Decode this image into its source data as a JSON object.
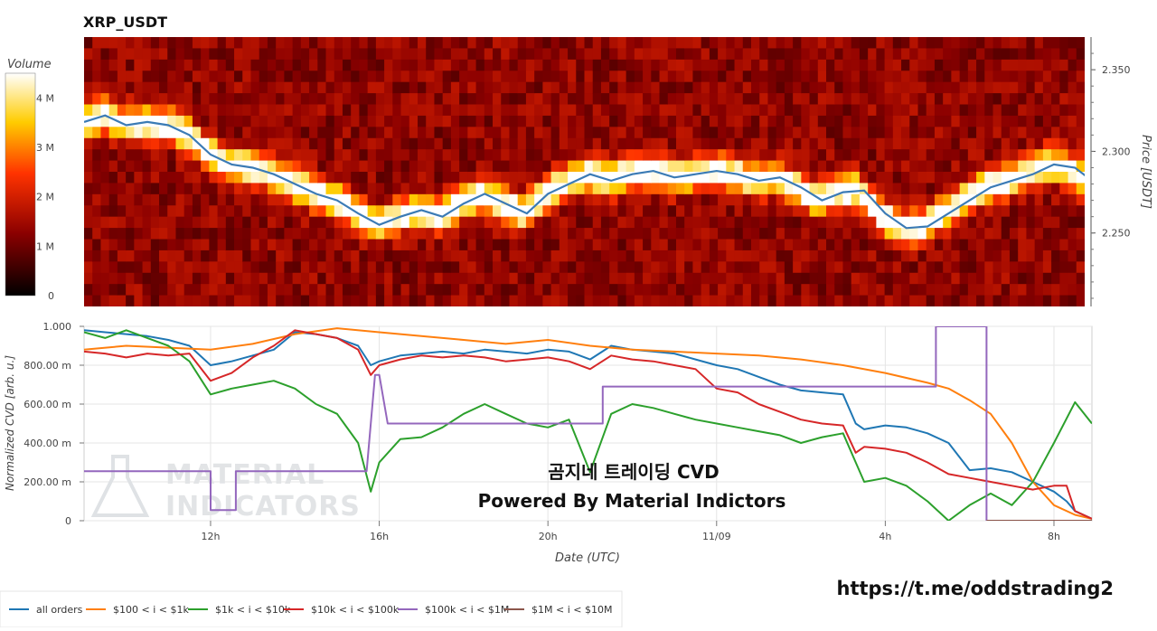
{
  "chart_data": [
    {
      "type": "heatmap",
      "title": "XRP_USDT",
      "ylabel": "Price [USDT]",
      "ylim": [
        2.205,
        2.37
      ],
      "yticks": [
        "2.350",
        "2.300",
        "2.250"
      ],
      "colorbar": {
        "title": "Volume",
        "ticks": [
          "4 M",
          "3 M",
          "2 M",
          "1 M",
          "0"
        ]
      },
      "price_line_color": "#3b7bb5",
      "price_series_hours": [
        9.0,
        9.5,
        10,
        10.5,
        11,
        11.5,
        12,
        12.5,
        13,
        13.5,
        14,
        14.5,
        15,
        15.5,
        16,
        16.5,
        17,
        17.5,
        18,
        18.5,
        19,
        19.5,
        20,
        20.5,
        21,
        21.5,
        22,
        22.5,
        23,
        23.5,
        24,
        24.5,
        25,
        25.5,
        26,
        26.5,
        27,
        27.5,
        28,
        28.5,
        29,
        29.5,
        30,
        30.5,
        31,
        31.5,
        32,
        32.5,
        32.9
      ],
      "price_series_values": [
        2.318,
        2.322,
        2.316,
        2.318,
        2.316,
        2.31,
        2.298,
        2.292,
        2.29,
        2.286,
        2.28,
        2.274,
        2.27,
        2.262,
        2.255,
        2.26,
        2.264,
        2.26,
        2.268,
        2.274,
        2.268,
        2.262,
        2.274,
        2.28,
        2.286,
        2.282,
        2.286,
        2.288,
        2.284,
        2.286,
        2.288,
        2.286,
        2.282,
        2.284,
        2.278,
        2.27,
        2.275,
        2.276,
        2.262,
        2.253,
        2.254,
        2.262,
        2.27,
        2.278,
        2.282,
        2.286,
        2.292,
        2.29,
        2.282
      ]
    },
    {
      "type": "line",
      "xlabel": "Date (UTC)",
      "ylabel": "Normalized CVD [arb. u.]",
      "xlim": [
        9.0,
        32.9
      ],
      "ylim": [
        0,
        1.0
      ],
      "yticks": [
        "1.000",
        "800.00 m",
        "600.00 m",
        "400.00 m",
        "200.00 m",
        "0"
      ],
      "xticks": [
        "12h",
        "16h",
        "20h",
        "11/09",
        "4h",
        "8h"
      ],
      "series": [
        {
          "name": "all orders",
          "color": "#1f77b4",
          "x": [
            9.0,
            9.5,
            10,
            10.5,
            11,
            11.5,
            12,
            12.5,
            13,
            13.5,
            14,
            14.5,
            15,
            15.5,
            15.8,
            16,
            16.5,
            17,
            17.5,
            18,
            18.5,
            19,
            19.5,
            20,
            20.5,
            21,
            21.5,
            22,
            22.5,
            23,
            23.5,
            24,
            24.5,
            25,
            25.5,
            26,
            26.5,
            27,
            27.3,
            27.5,
            28,
            28.5,
            29,
            29.5,
            30,
            30.5,
            31,
            31.5,
            32,
            32.3,
            32.5,
            32.9
          ],
          "y": [
            0.98,
            0.97,
            0.96,
            0.95,
            0.93,
            0.9,
            0.8,
            0.82,
            0.85,
            0.88,
            0.97,
            0.96,
            0.94,
            0.9,
            0.8,
            0.82,
            0.85,
            0.86,
            0.87,
            0.86,
            0.88,
            0.87,
            0.86,
            0.88,
            0.87,
            0.83,
            0.9,
            0.88,
            0.87,
            0.86,
            0.83,
            0.8,
            0.78,
            0.74,
            0.7,
            0.67,
            0.66,
            0.65,
            0.5,
            0.47,
            0.49,
            0.48,
            0.45,
            0.4,
            0.26,
            0.27,
            0.25,
            0.2,
            0.15,
            0.1,
            0.05,
            0.01
          ]
        },
        {
          "name": "$100 < i < $1k",
          "color": "#ff7f0e",
          "x": [
            9.0,
            10,
            11,
            12,
            13,
            14,
            15,
            16,
            17,
            18,
            19,
            20,
            21,
            22,
            23,
            24,
            25,
            26,
            27,
            28,
            29,
            29.5,
            30,
            30.5,
            31,
            31.5,
            32,
            32.5,
            32.9
          ],
          "y": [
            0.88,
            0.9,
            0.89,
            0.88,
            0.91,
            0.96,
            0.99,
            0.97,
            0.95,
            0.93,
            0.91,
            0.93,
            0.9,
            0.88,
            0.87,
            0.86,
            0.85,
            0.83,
            0.8,
            0.76,
            0.71,
            0.68,
            0.62,
            0.55,
            0.4,
            0.2,
            0.08,
            0.03,
            0.01
          ]
        },
        {
          "name": "$1k < i < $10k",
          "color": "#2ca02c",
          "x": [
            9.0,
            9.5,
            10,
            10.5,
            11,
            11.5,
            12,
            12.5,
            13,
            13.5,
            14,
            14.5,
            15,
            15.5,
            15.8,
            16,
            16.5,
            17,
            17.5,
            18,
            18.5,
            19,
            19.5,
            20,
            20.5,
            21,
            21.5,
            22,
            22.5,
            23,
            23.5,
            24,
            24.5,
            25,
            25.5,
            26,
            26.5,
            27,
            27.3,
            27.5,
            28,
            28.5,
            29,
            29.5,
            30,
            30.5,
            31,
            31.5,
            32,
            32.5,
            32.9
          ],
          "y": [
            0.97,
            0.94,
            0.98,
            0.94,
            0.9,
            0.82,
            0.65,
            0.68,
            0.7,
            0.72,
            0.68,
            0.6,
            0.55,
            0.4,
            0.15,
            0.3,
            0.42,
            0.43,
            0.48,
            0.55,
            0.6,
            0.55,
            0.5,
            0.48,
            0.52,
            0.25,
            0.55,
            0.6,
            0.58,
            0.55,
            0.52,
            0.5,
            0.48,
            0.46,
            0.44,
            0.4,
            0.43,
            0.45,
            0.3,
            0.2,
            0.22,
            0.18,
            0.1,
            0.0,
            0.08,
            0.14,
            0.08,
            0.2,
            0.4,
            0.61,
            0.5
          ]
        },
        {
          "name": "$10k < i < $100k",
          "color": "#d62728",
          "x": [
            9.0,
            9.5,
            10,
            10.5,
            11,
            11.5,
            12,
            12.5,
            13,
            13.5,
            14,
            14.5,
            15,
            15.5,
            15.8,
            16,
            16.5,
            17,
            17.5,
            18,
            18.5,
            19,
            19.5,
            20,
            20.5,
            21,
            21.5,
            22,
            22.5,
            23,
            23.5,
            24,
            24.5,
            25,
            25.5,
            26,
            26.5,
            27,
            27.3,
            27.5,
            28,
            28.5,
            29,
            29.5,
            30,
            30.5,
            31,
            31.5,
            32,
            32.3,
            32.5,
            32.9
          ],
          "y": [
            0.87,
            0.86,
            0.84,
            0.86,
            0.85,
            0.86,
            0.72,
            0.76,
            0.84,
            0.9,
            0.98,
            0.96,
            0.94,
            0.88,
            0.75,
            0.8,
            0.83,
            0.85,
            0.84,
            0.85,
            0.84,
            0.82,
            0.83,
            0.84,
            0.82,
            0.78,
            0.85,
            0.83,
            0.82,
            0.8,
            0.78,
            0.68,
            0.66,
            0.6,
            0.56,
            0.52,
            0.5,
            0.49,
            0.35,
            0.38,
            0.37,
            0.35,
            0.3,
            0.24,
            0.22,
            0.2,
            0.18,
            0.16,
            0.18,
            0.18,
            0.05,
            0.01
          ]
        },
        {
          "name": "$100k < i < $1M",
          "color": "#9467bd",
          "x": [
            9.0,
            12.0,
            12.0,
            12.6,
            12.6,
            15.7,
            15.9,
            16.0,
            16.2,
            16.2,
            21.3,
            21.3,
            29.2,
            29.2,
            30.4,
            30.4,
            32.9
          ],
          "y": [
            0.255,
            0.255,
            0.055,
            0.055,
            0.255,
            0.255,
            0.75,
            0.75,
            0.5,
            0.5,
            0.5,
            0.69,
            0.69,
            1.0,
            1.0,
            0.0,
            0.0
          ]
        },
        {
          "name": "$1M < i < $10M",
          "color": "#8c564b",
          "x": [
            30.4,
            32.9
          ],
          "y": [
            0.0,
            0.0
          ]
        }
      ]
    }
  ],
  "overlay": {
    "line1": "곰지네 트레이딩 CVD",
    "line2": "Powered By Material Indictors"
  },
  "watermark": {
    "line1": "MATERIAL",
    "line2": "INDICATORS"
  },
  "link": "https://t.me/oddstrading2"
}
